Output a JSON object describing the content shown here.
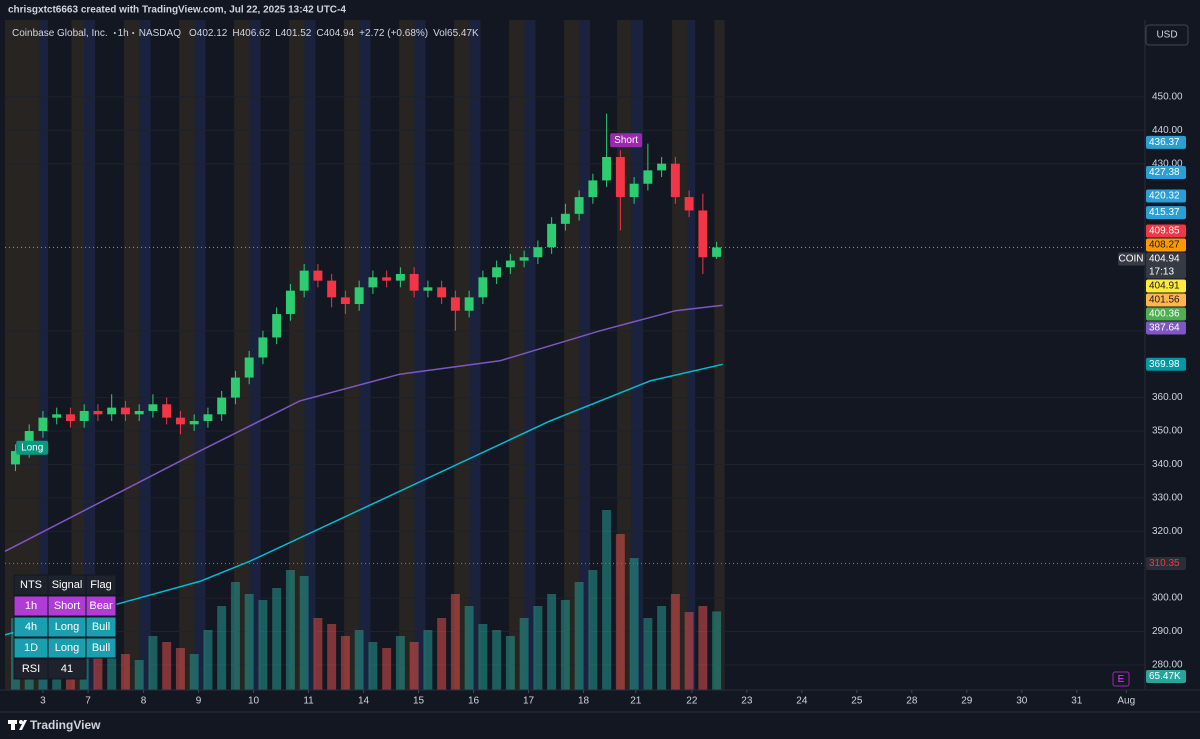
{
  "header": {
    "text": "chrisgxtct6663 created with TradingView.com, Jul 22, 2025 13:42 UTC-4"
  },
  "chart_data": {
    "type": "candlestick",
    "symbol": "Coinbase Global, Inc.",
    "interval": "1h",
    "exchange": "NASDAQ",
    "ohlc_legend": [
      {
        "label": "O",
        "value": 402.12
      },
      {
        "label": "H",
        "value": 406.62
      },
      {
        "label": "L",
        "value": 401.52
      },
      {
        "label": "C",
        "value": 404.94
      }
    ],
    "change": "+2.72 (+0.68%)",
    "volume_legend": {
      "label": "Vol",
      "value": "65.47K"
    },
    "currency": "USD",
    "x": [
      -0.5,
      -0.25,
      0,
      0.25,
      0.5,
      0.75,
      1,
      1.25,
      1.5,
      1.75,
      2,
      2.25,
      2.5,
      2.75,
      3,
      3.25,
      3.5,
      3.75,
      4,
      4.25,
      4.5,
      4.75,
      5,
      5.25,
      5.5,
      5.75,
      6,
      6.25,
      6.5,
      6.75,
      7,
      7.25,
      7.5,
      7.75,
      8,
      8.25,
      8.5,
      8.75,
      9,
      9.25,
      9.5,
      9.75,
      10,
      10.25,
      10.5,
      10.75,
      11,
      11.25,
      11.5,
      11.75,
      12,
      12.25
    ],
    "open": [
      340,
      344,
      350,
      354,
      355,
      353,
      356,
      355,
      357,
      355,
      356,
      358,
      354,
      352,
      353,
      355,
      360,
      366,
      372,
      378,
      385,
      392,
      398,
      395,
      390,
      388,
      393,
      396,
      395,
      397,
      392,
      393,
      390,
      386,
      390,
      396,
      399,
      401,
      402,
      405,
      412,
      415,
      420,
      425,
      432,
      420,
      424,
      428,
      430,
      420,
      416,
      402.12
    ],
    "high": [
      346,
      352,
      356,
      357,
      357,
      358,
      358,
      361,
      359,
      358,
      361,
      360,
      356,
      355,
      357,
      362,
      368,
      374,
      380,
      387,
      394,
      400,
      400,
      397,
      392,
      395,
      398,
      398,
      399,
      399,
      395,
      395,
      392,
      392,
      398,
      401,
      403,
      404,
      407,
      414,
      418,
      422,
      427,
      445,
      434,
      426,
      436,
      432,
      432,
      422,
      421,
      406.62
    ],
    "low": [
      338,
      342,
      348,
      352,
      351,
      351,
      353,
      353,
      353,
      353,
      354,
      352,
      349,
      350,
      351,
      353,
      358,
      364,
      370,
      376,
      383,
      390,
      393,
      387,
      385,
      386,
      391,
      393,
      393,
      390,
      390,
      388,
      380,
      384,
      388,
      394,
      397,
      399,
      400,
      403,
      410,
      413,
      418,
      423,
      410,
      418,
      422,
      426,
      418,
      414,
      397,
      401.52
    ],
    "close": [
      344,
      350,
      354,
      355,
      353,
      356,
      355,
      357,
      355,
      356,
      358,
      354,
      352,
      353,
      355,
      360,
      366,
      372,
      378,
      385,
      392,
      398,
      395,
      390,
      388,
      393,
      396,
      395,
      397,
      392,
      393,
      390,
      386,
      390,
      396,
      399,
      401,
      402,
      405,
      412,
      415,
      420,
      425,
      432,
      420,
      424,
      428,
      430,
      420,
      416,
      402,
      404.94
    ],
    "volume": [
      60,
      40,
      35,
      30,
      25,
      30,
      35,
      40,
      30,
      25,
      45,
      40,
      35,
      30,
      50,
      70,
      90,
      80,
      75,
      85,
      100,
      95,
      60,
      55,
      45,
      50,
      40,
      35,
      45,
      40,
      50,
      60,
      80,
      70,
      55,
      50,
      45,
      60,
      70,
      80,
      75,
      90,
      100,
      150,
      130,
      110,
      60,
      70,
      80,
      65,
      70,
      65.47
    ],
    "up_color": "#2ecc71",
    "down_color": "#f23645",
    "xlim": [
      -0.69,
      20.04
    ],
    "xticks": [
      {
        "value": 0,
        "label": "3"
      },
      {
        "value": 0.82,
        "label": "7"
      },
      {
        "value": 1.83,
        "label": "8"
      },
      {
        "value": 2.83,
        "label": "9"
      },
      {
        "value": 3.83,
        "label": "10"
      },
      {
        "value": 4.83,
        "label": "11"
      },
      {
        "value": 5.83,
        "label": "14"
      },
      {
        "value": 6.83,
        "label": "15"
      },
      {
        "value": 7.83,
        "label": "16"
      },
      {
        "value": 8.83,
        "label": "17"
      },
      {
        "value": 9.83,
        "label": "18"
      },
      {
        "value": 10.78,
        "label": "21"
      },
      {
        "value": 11.8,
        "label": "22"
      },
      {
        "value": 12.8,
        "label": "23"
      },
      {
        "value": 13.8,
        "label": "24"
      },
      {
        "value": 14.8,
        "label": "25"
      },
      {
        "value": 15.8,
        "label": "28"
      },
      {
        "value": 16.8,
        "label": "29"
      },
      {
        "value": 17.8,
        "label": "30"
      },
      {
        "value": 18.8,
        "label": "31"
      },
      {
        "value": 19.7,
        "label": "Aug"
      }
    ],
    "ylim": [
      272.5,
      473
    ],
    "yticks": [
      {
        "value": 280,
        "label": "280.00"
      },
      {
        "value": 290,
        "label": "290.00"
      },
      {
        "value": 300,
        "label": "300.00"
      },
      {
        "value": 320,
        "label": "320.00"
      },
      {
        "value": 330,
        "label": "330.00"
      },
      {
        "value": 340,
        "label": "340.00"
      },
      {
        "value": 350,
        "label": "350.00"
      },
      {
        "value": 360,
        "label": "360.00"
      },
      {
        "value": 380,
        "label": "380.00"
      },
      {
        "value": 430,
        "label": "430.00"
      },
      {
        "value": 440,
        "label": "440.00"
      },
      {
        "value": 450,
        "label": "450.00"
      }
    ],
    "volume_ylim": [
      0,
      250
    ],
    "lines": [
      {
        "color": "#7e57c2",
        "x": [
          -0.69,
          2.85,
          4.67,
          6.49,
          8.31,
          10.13,
          11.5,
          12.36
        ],
        "values": [
          314,
          344,
          359,
          367,
          371,
          380,
          386,
          387.64
        ]
      },
      {
        "color": "#00bcd4",
        "x": [
          -0.69,
          2.85,
          3.76,
          6.49,
          9.22,
          11.04,
          12.36
        ],
        "values": [
          289,
          305,
          311,
          332,
          353,
          365,
          369.98
        ]
      }
    ],
    "price_tags": [
      {
        "value": 436.37,
        "color": "#2a9fd6",
        "text_color": "#ffffff"
      },
      {
        "value": 427.38,
        "color": "#2a9fd6",
        "text_color": "#ffffff"
      },
      {
        "value": 420.32,
        "color": "#2a9fd6",
        "text_color": "#ffffff"
      },
      {
        "value": 415.37,
        "color": "#2a9fd6",
        "text_color": "#ffffff"
      },
      {
        "value": 409.85,
        "color": "#f23645",
        "text_color": "#ffffff"
      },
      {
        "value": 408.27,
        "color": "#ff9800",
        "text_color": "#131722"
      },
      {
        "value": 404.94,
        "color": "#363a45",
        "text_color": "#ffffff",
        "label": "COIN",
        "countdown": "17:13",
        "line_color": "#4caf50"
      },
      {
        "value": 404.91,
        "color": "#ffeb3b",
        "text_color": "#131722"
      },
      {
        "value": 401.56,
        "color": "#ffb74d",
        "text_color": "#131722"
      },
      {
        "value": 400.36,
        "color": "#4caf50",
        "text_color": "#ffffff"
      },
      {
        "value": 387.64,
        "color": "#7e57c2",
        "text_color": "#ffffff"
      },
      {
        "value": 369.98,
        "color": "#0097a7",
        "text_color": "#ffffff"
      },
      {
        "value": 310.35,
        "color": "#2a2e39",
        "text_color": "#f23645",
        "line_color": "#f23645"
      }
    ],
    "annotations": [
      {
        "text": "Long",
        "x": -0.45,
        "y": 345,
        "color": "#089981"
      },
      {
        "text": "Short",
        "x": 10.35,
        "y": 437,
        "color": "#9c27b0"
      }
    ],
    "event_marker": "E"
  },
  "table": {
    "rows": [
      [
        "NTS",
        "Signal",
        "Flag"
      ],
      [
        "1h",
        "Short",
        "Bear"
      ],
      [
        "4h",
        "Long",
        "Bull"
      ],
      [
        "1D",
        "Long",
        "Bull"
      ],
      [
        "RSI",
        "41"
      ]
    ]
  },
  "footer": {
    "brand": "TradingView"
  }
}
